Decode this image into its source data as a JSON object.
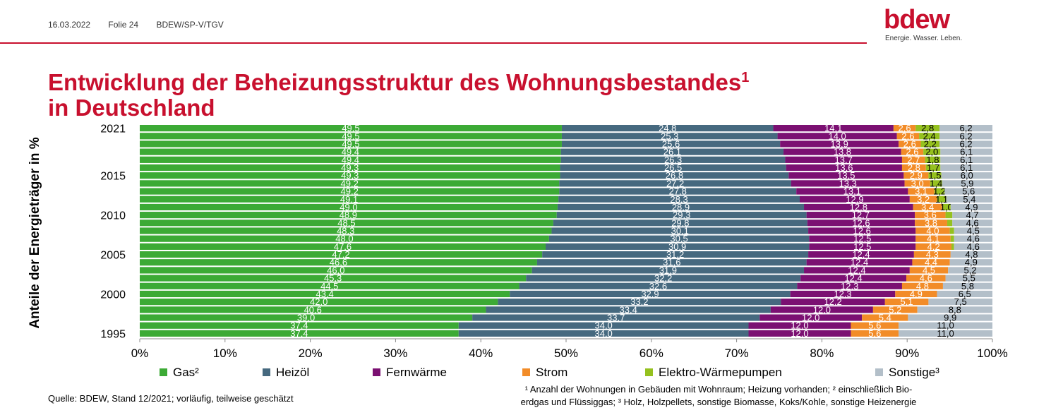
{
  "header": {
    "date": "16.03.2022",
    "slide": "Folie 24",
    "department": "BDEW/SP-V/TGV"
  },
  "logo": {
    "wordmark": "bdew",
    "tagline": "Energie. Wasser. Leben."
  },
  "title": {
    "line1": "Entwicklung der Beheizungsstruktur des Wohnungsbestandes",
    "sup": "1",
    "line2": "in Deutschland"
  },
  "source": "Quelle: BDEW, Stand 12/2021; vorläufig, teilweise geschätzt",
  "footnote": {
    "line1": "¹ Anzahl der Wohnungen in Gebäuden mit Wohnraum; Heizung vorhanden; ² einschließlich Bio-",
    "line2": "erdgas und Flüssiggas; ³ Holz, Holzpellets, sonstige Biomasse, Koks/Kohle, sonstige Heizenergie"
  },
  "colors": {
    "brand": "#c8102e"
  },
  "chart_data": {
    "type": "bar",
    "orientation": "horizontal",
    "stacked": true,
    "ylabel": "Anteile der Energieträger in %",
    "xlim": [
      0,
      100
    ],
    "x_ticks": [
      "0%",
      "10%",
      "20%",
      "30%",
      "40%",
      "50%",
      "60%",
      "70%",
      "80%",
      "90%",
      "100%"
    ],
    "y_tick_labels": [
      "2021",
      "2015",
      "2010",
      "2005",
      "2000",
      "1995"
    ],
    "categories": [
      "2021",
      "2020",
      "2019",
      "2018",
      "2017",
      "2016",
      "2015",
      "2014",
      "2013",
      "2012",
      "2011",
      "2010",
      "2009",
      "2008",
      "2007",
      "2006",
      "2005",
      "2004",
      "2003",
      "2002",
      "2001",
      "2000",
      "1999",
      "1998",
      "1997",
      "1996",
      "1995"
    ],
    "series": [
      {
        "name": "Gas²",
        "color": "#3caa35",
        "values": [
          49.5,
          49.5,
          49.5,
          49.4,
          49.4,
          49.3,
          49.3,
          49.2,
          49.2,
          49.1,
          49.0,
          48.9,
          48.5,
          48.3,
          48.0,
          47.6,
          47.2,
          46.6,
          46.0,
          45.3,
          44.5,
          43.4,
          42.0,
          40.6,
          39.0,
          37.4,
          37.4
        ],
        "labels": [
          "49,5",
          "49,5",
          "49,5",
          "49,4",
          "49,4",
          "49,3",
          "49,3",
          "49,2",
          "49,2",
          "49,1",
          "49,0",
          "48,9",
          "48,5",
          "48,3",
          "48,0",
          "47,6",
          "47,2",
          "46,6",
          "46,0",
          "45,3",
          "44,5",
          "43,4",
          "42,0",
          "40,6",
          "39,0",
          "37,4",
          "37,4"
        ]
      },
      {
        "name": "Heizöl",
        "color": "#46697f",
        "values": [
          24.8,
          25.3,
          25.6,
          26.1,
          26.3,
          26.5,
          26.8,
          27.2,
          27.8,
          28.3,
          28.9,
          29.3,
          29.8,
          30.1,
          30.5,
          30.9,
          31.2,
          31.6,
          31.9,
          32.2,
          32.6,
          32.9,
          33.2,
          33.4,
          33.7,
          34.0,
          34.0
        ],
        "labels": [
          "24,8",
          "25,3",
          "25,6",
          "26,1",
          "26,3",
          "26,5",
          "26,8",
          "27,2",
          "27,8",
          "28,3",
          "28,9",
          "29,3",
          "29,8",
          "30,1",
          "30,5",
          "30,9",
          "31,2",
          "31,6",
          "31,9",
          "32,2",
          "32,6",
          "32,9",
          "33,2",
          "33,4",
          "33,7",
          "34,0",
          "34,0"
        ]
      },
      {
        "name": "Fernwärme",
        "color": "#7b1072",
        "values": [
          14.1,
          14.0,
          13.9,
          13.8,
          13.7,
          13.6,
          13.5,
          13.3,
          13.1,
          12.9,
          12.8,
          12.7,
          12.6,
          12.6,
          12.5,
          12.5,
          12.4,
          12.4,
          12.4,
          12.4,
          12.3,
          12.3,
          12.2,
          12.0,
          12.0,
          12.0,
          12.0
        ],
        "labels": [
          "14,1",
          "14,0",
          "13,9",
          "13,8",
          "13,7",
          "13,6",
          "13,5",
          "13,3",
          "13,1",
          "12,9",
          "12,8",
          "12,7",
          "12,6",
          "12,6",
          "12,5",
          "12,5",
          "12,4",
          "12,4",
          "12,4",
          "12,4",
          "12,3",
          "12,3",
          "12,2",
          "12,0",
          "12,0",
          "12,0",
          "12,0"
        ]
      },
      {
        "name": "Strom",
        "color": "#f28c28",
        "values": [
          2.6,
          2.6,
          2.6,
          2.6,
          2.7,
          2.8,
          2.9,
          3.0,
          3.1,
          3.2,
          3.4,
          3.6,
          3.8,
          4.0,
          4.1,
          4.2,
          4.3,
          4.4,
          4.5,
          4.6,
          4.8,
          4.9,
          5.1,
          5.2,
          5.4,
          5.6,
          5.6
        ],
        "labels": [
          "2,6",
          "2,6",
          "2,6",
          "2,6",
          "2,7",
          "2,8",
          "2,9",
          "3,0",
          "3,1",
          "3,2",
          "3,4",
          "3,6",
          "3,8",
          "4,0",
          "4,1",
          "4,2",
          "4,3",
          "4,4",
          "4,5",
          "4,6",
          "4,8",
          "4,9",
          "5,1",
          "5,2",
          "5,4",
          "5,6",
          "5,6"
        ]
      },
      {
        "name": "Elektro-Wärmepumpen",
        "color": "#95c11f",
        "values": [
          2.8,
          2.4,
          2.2,
          2.0,
          1.8,
          1.7,
          1.5,
          1.4,
          1.2,
          1.1,
          1.0,
          0.8,
          0.6,
          0.5,
          0.4,
          0.3,
          0,
          0,
          0,
          0,
          0,
          0,
          0,
          0,
          0,
          0,
          0
        ],
        "labels": [
          "2,8",
          "2,4",
          "2,2",
          "2,0",
          "1,8",
          "1,7",
          "1,5",
          "1,4",
          "1,2",
          "1,1",
          "1,0",
          "",
          "",
          "",
          "",
          "",
          "",
          "",
          "",
          "",
          "",
          "",
          "",
          "",
          "",
          "",
          ""
        ]
      },
      {
        "name": "Sonstige³",
        "color": "#b3bfc9",
        "values": [
          6.2,
          6.2,
          6.2,
          6.1,
          6.1,
          6.1,
          6.0,
          5.9,
          5.6,
          5.4,
          4.9,
          4.7,
          4.6,
          4.5,
          4.6,
          4.6,
          4.8,
          4.9,
          5.2,
          5.5,
          5.8,
          6.5,
          7.5,
          8.8,
          9.9,
          11.0,
          11.0
        ],
        "labels": [
          "6,2",
          "6,2",
          "6,2",
          "6,1",
          "6,1",
          "6,1",
          "6,0",
          "5,9",
          "5,6",
          "5,4",
          "4,9",
          "4,7",
          "4,6",
          "4,5",
          "4,6",
          "4,6",
          "4,8",
          "4,9",
          "5,2",
          "5,5",
          "5,8",
          "6,5",
          "7,5",
          "8,8",
          "9,9",
          "11,0",
          "11,0"
        ]
      }
    ]
  }
}
